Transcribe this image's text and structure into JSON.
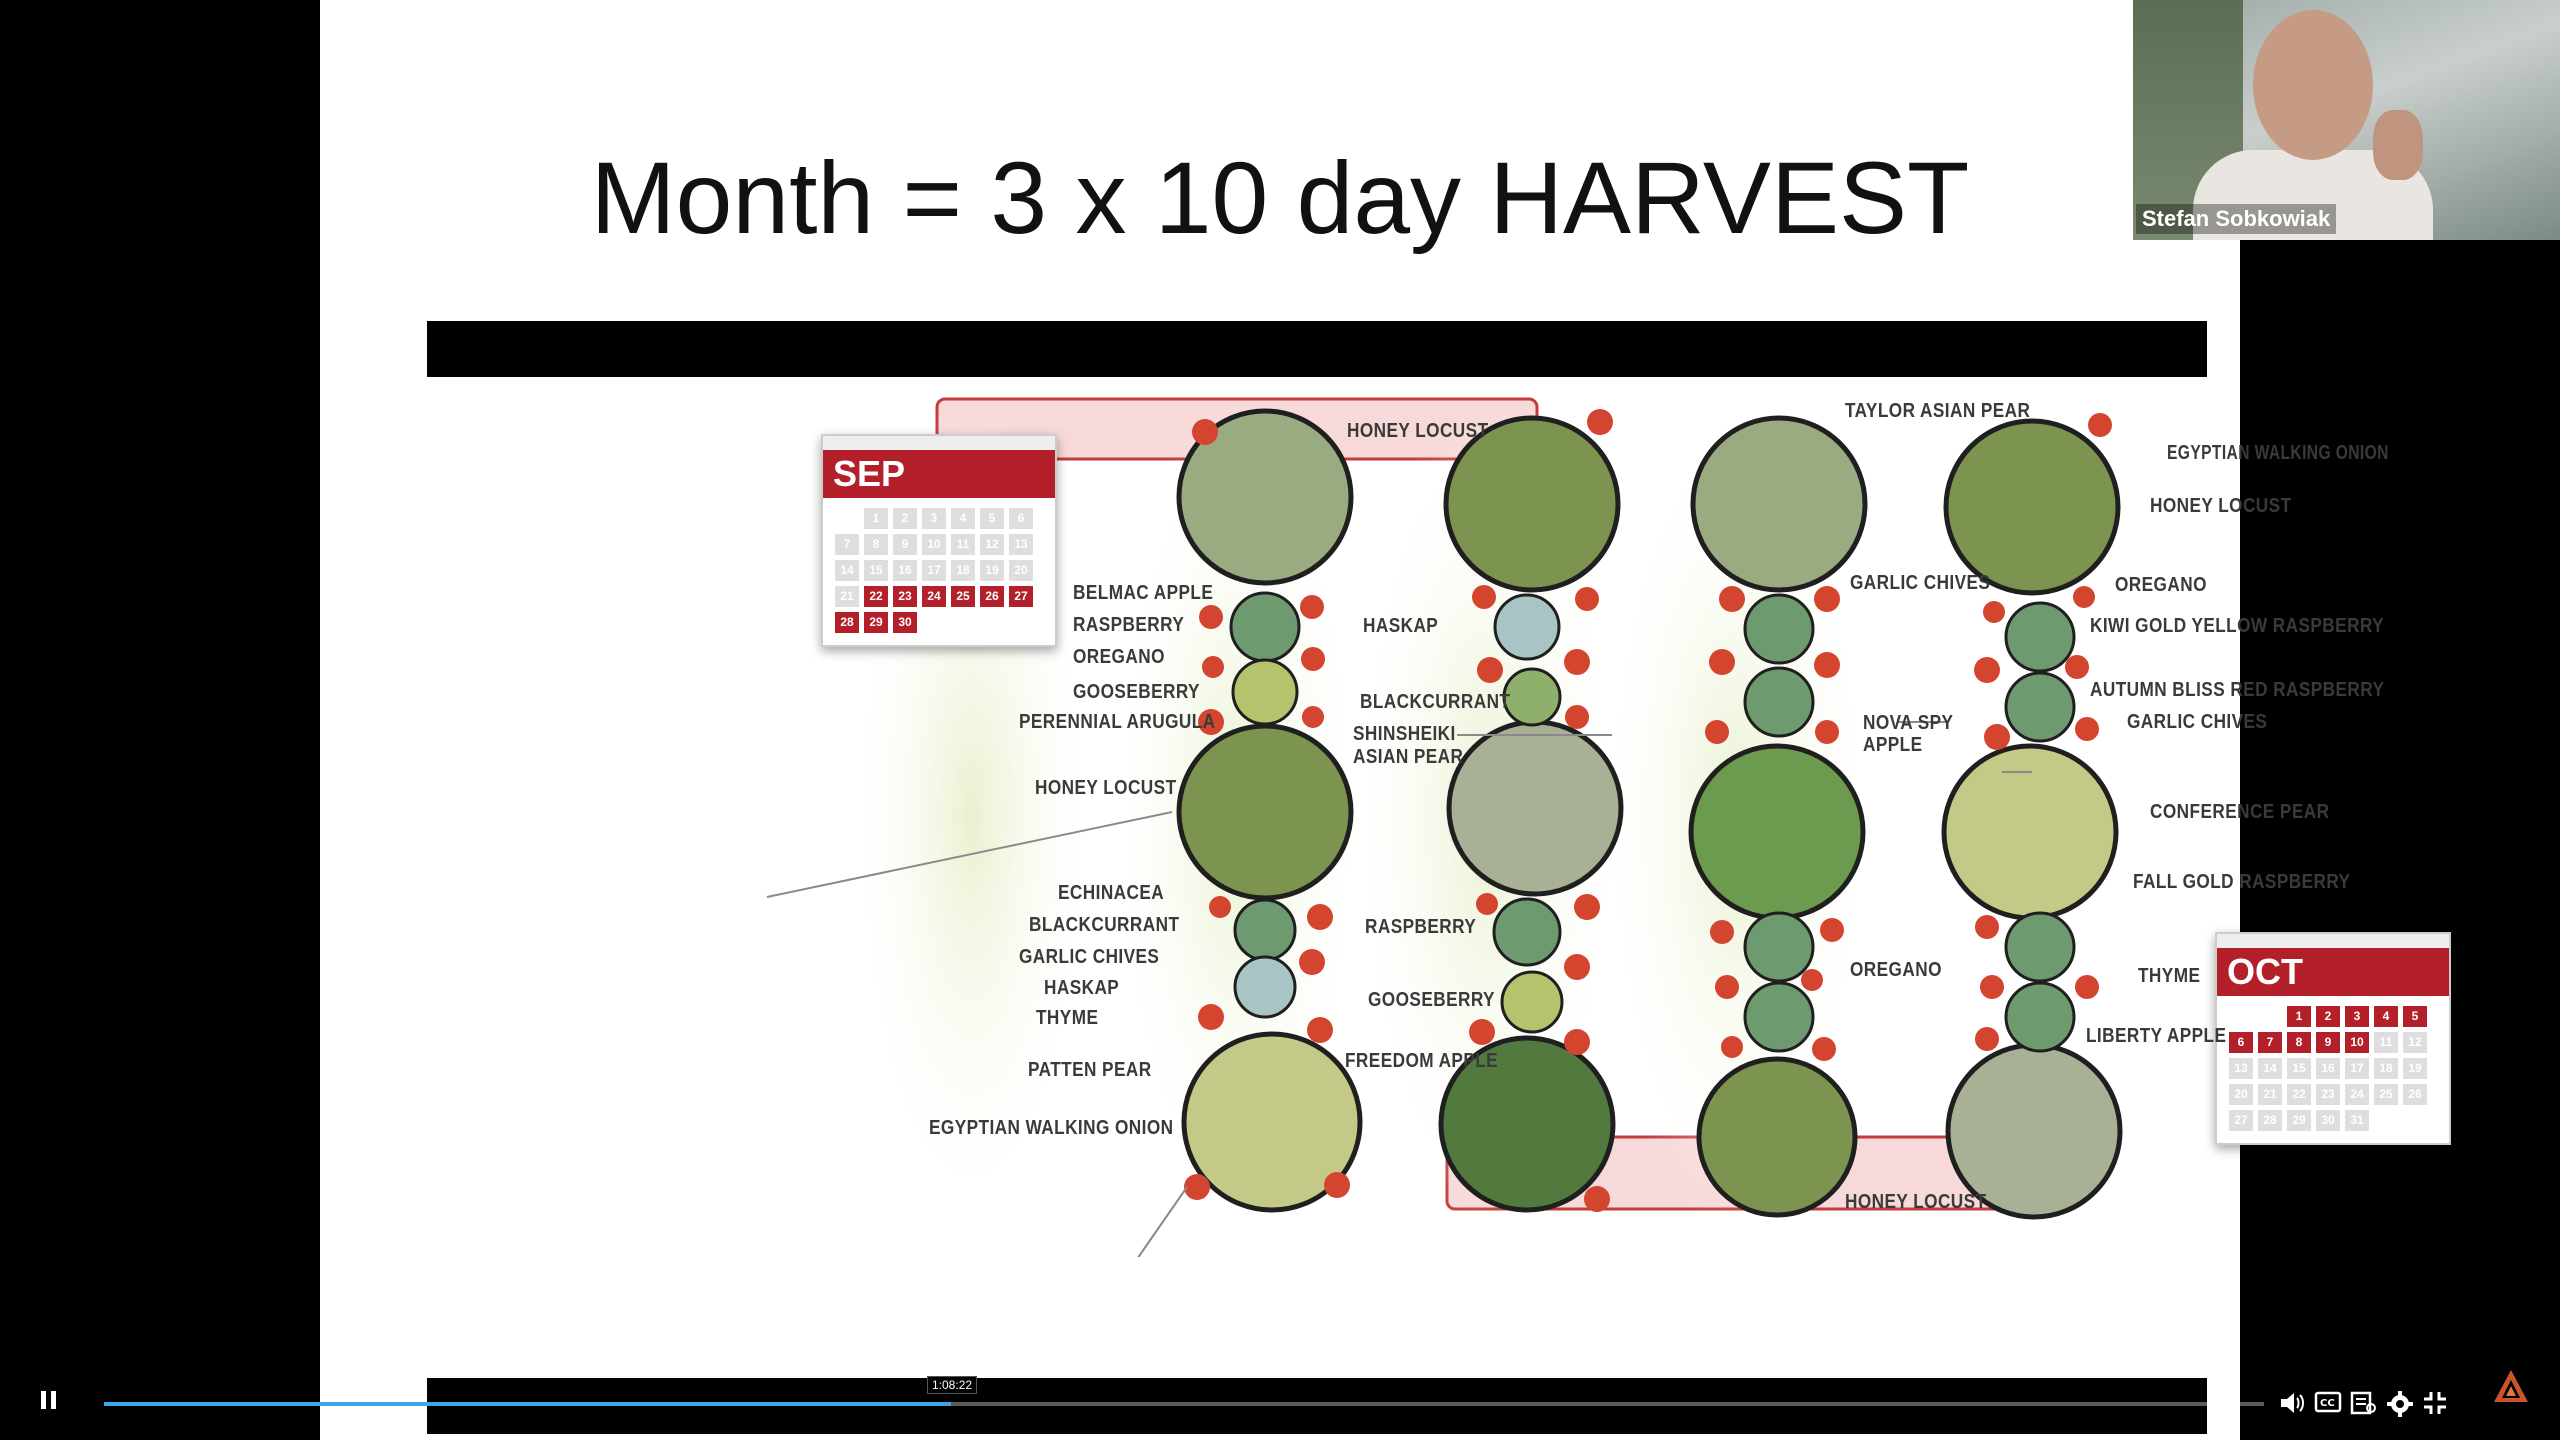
{
  "slide": {
    "title": "Month = 3 x 10 day HARVEST"
  },
  "calendars": {
    "sep": {
      "month": "SEP",
      "days": [
        "",
        "1",
        "2",
        "3",
        "4",
        "5",
        "6",
        "7",
        "8",
        "9",
        "10",
        "11",
        "12",
        "13",
        "14",
        "15",
        "16",
        "17",
        "18",
        "19",
        "20",
        "21",
        "22",
        "23",
        "24",
        "25",
        "26",
        "27",
        "28",
        "29",
        "30"
      ],
      "highlighted": [
        "22",
        "23",
        "24",
        "25",
        "26",
        "27",
        "28",
        "29",
        "30"
      ]
    },
    "oct": {
      "month": "OCT",
      "days": [
        "",
        "",
        "1",
        "2",
        "3",
        "4",
        "5",
        "6",
        "7",
        "8",
        "9",
        "10",
        "11",
        "12",
        "13",
        "14",
        "15",
        "16",
        "17",
        "18",
        "19",
        "20",
        "21",
        "22",
        "23",
        "24",
        "25",
        "26",
        "27",
        "28",
        "29",
        "30",
        "31"
      ],
      "highlighted": [
        "1",
        "2",
        "3",
        "4",
        "5",
        "6",
        "7",
        "8",
        "9",
        "10"
      ]
    }
  },
  "labels": {
    "honey_locust_top": "HONEY LOCUST",
    "belmac_apple": "BELMAC APPLE",
    "raspberry_l": "RASPBERRY",
    "oregano_l": "OREGANO",
    "gooseberry_l": "GOOSEBERRY",
    "perennial_arugula": "PERENNIAL ARUGULA",
    "honey_locust_l": "HONEY LOCUST",
    "echinacea": "ECHINACEA",
    "blackcurrant_l": "BLACKCURRANT",
    "garlic_chives_l": "GARLIC CHIVES",
    "haskap_l": "HASKAP",
    "thyme_l": "THYME",
    "patten_pear": "PATTEN PEAR",
    "egyptian_onion_l": "EGYPTIAN WALKING ONION",
    "haskap_m": "HASKAP",
    "blackcurrant_m": "BLACKCURRANT",
    "shinsheiki": "SHINSHEIKI",
    "asian_pear": "ASIAN PEAR",
    "raspberry_m": "RASPBERRY",
    "gooseberry_m": "GOOSEBERRY",
    "freedom_apple": "FREEDOM APPLE",
    "taylor_asian_pear": "TAYLOR ASIAN PEAR",
    "garlic_chives_m": "GARLIC CHIVES",
    "nova_spy": "NOVA SPY",
    "apple": "APPLE",
    "oregano_m": "OREGANO",
    "honey_locust_bottom": "HONEY LOCUST",
    "egyptian_onion_r": "EGYPTIAN WALKING ONION",
    "honey_locust_r": "HONEY LOCUST",
    "oregano_r": "OREGANO",
    "kiwi_gold": "KIWI GOLD YELLOW RASPBERRY",
    "autumn_bliss": "AUTUMN BLISS RED RASPBERRY",
    "garlic_chives_r": "GARLIC CHIVES",
    "conference_pear": "CONFERENCE PEAR",
    "fall_gold": "FALL GOLD RASPBERRY",
    "thyme_r": "THYME",
    "liberty_apple": "LIBERTY APPLE"
  },
  "webcam": {
    "name": "Stefan Sobkowiak"
  },
  "player": {
    "time_tooltip": "1:08:22",
    "progress_fraction": 0.392,
    "accent": "#3ea6e8"
  },
  "icons": {
    "pause": "pause-icon",
    "volume": "volume-icon",
    "captions": "captions-icon",
    "transcript": "transcript-icon",
    "settings": "gear-icon",
    "exit_fullscreen": "exit-fullscreen-icon"
  }
}
